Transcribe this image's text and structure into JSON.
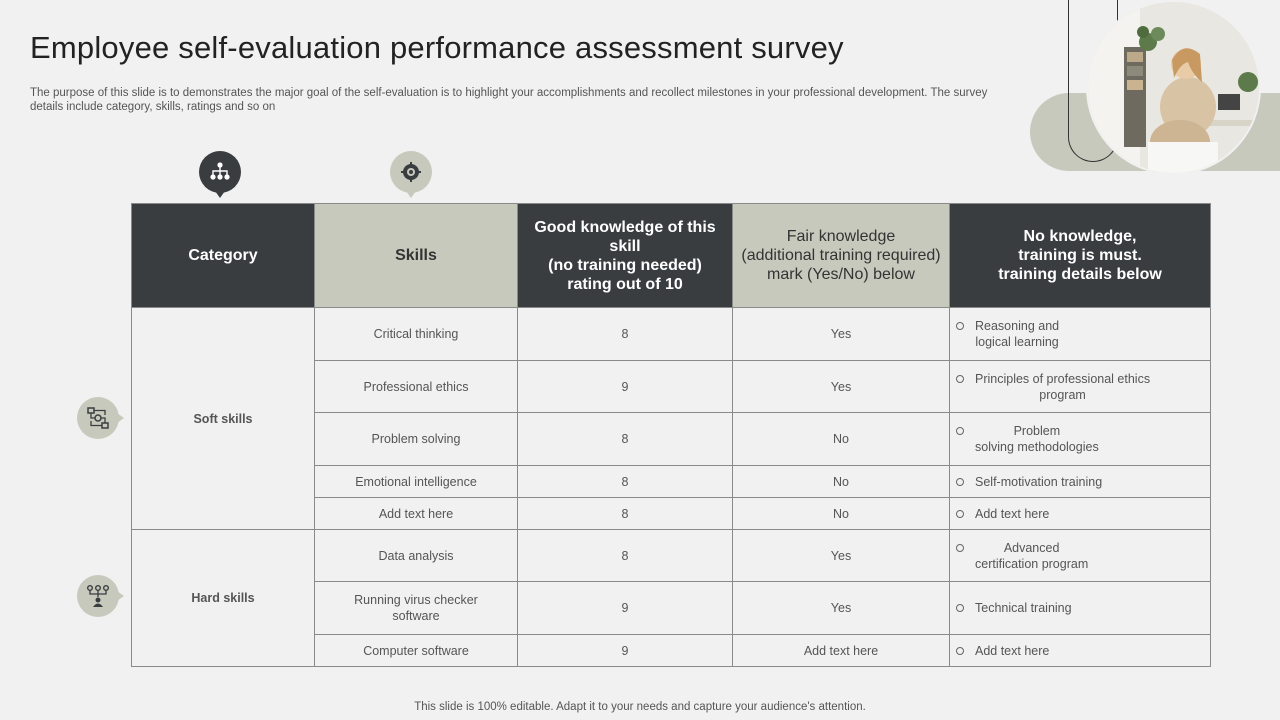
{
  "slide": {
    "title": "Employee self-evaluation performance assessment survey",
    "description": "The purpose of this slide is to demonstrates the major goal of the self-evaluation is to highlight your accomplishments and recollect milestones in your professional development. The survey details include category, skills, ratings and so on",
    "footer": "This slide is 100% editable. Adapt it to your needs and capture your audience's attention."
  },
  "table": {
    "headers": {
      "category": "Category",
      "skills": "Skills",
      "good": "Good knowledge of this skill\n(no training needed)\nrating out of 10",
      "fair": "Fair knowledge\n(additional training required)\nmark (Yes/No) below",
      "none": "No knowledge,\ntraining is must.\ntraining details below"
    },
    "groups": [
      {
        "category": "Soft skills",
        "rows": [
          {
            "skill": "Critical thinking",
            "rating": "8",
            "fair": "Yes",
            "training": "Reasoning and\nlogical learning"
          },
          {
            "skill": "Professional ethics",
            "rating": "9",
            "fair": "Yes",
            "training": "Principles of professional ethics\nprogram"
          },
          {
            "skill": "Problem solving",
            "rating": "8",
            "fair": "No",
            "training": "Problem\nsolving methodologies"
          },
          {
            "skill": "Emotional intelligence",
            "rating": "8",
            "fair": "No",
            "training": "Self-motivation training"
          },
          {
            "skill": "Add text here",
            "rating": "8",
            "fair": "No",
            "training": "Add text here"
          }
        ]
      },
      {
        "category": "Hard skills",
        "rows": [
          {
            "skill": "Data analysis",
            "rating": "8",
            "fair": "Yes",
            "training": "Advanced\ncertification program"
          },
          {
            "skill": "Running virus checker\nsoftware",
            "rating": "9",
            "fair": "Yes",
            "training": "Technical training"
          },
          {
            "skill": "Computer software",
            "rating": "9",
            "fair": "Add text here",
            "training": "Add text here"
          }
        ]
      }
    ]
  },
  "icons": {
    "category_header": "hierarchy-icon",
    "skills_header": "gear-brain-icon",
    "soft_skills": "workflow-icon",
    "hard_skills": "network-person-icon",
    "photo": "woman-working-photo"
  },
  "colors": {
    "dark": "#3a3d40",
    "light": "#c8c9bd",
    "background": "#f1f1f1"
  }
}
